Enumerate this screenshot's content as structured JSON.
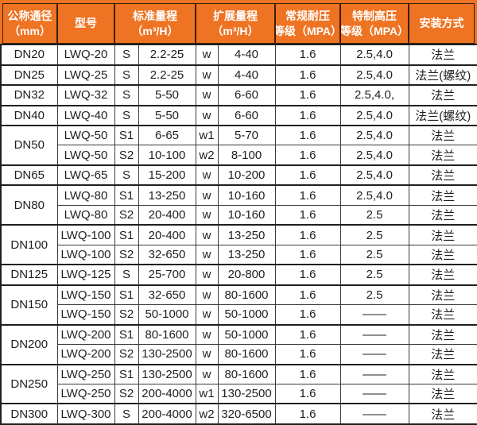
{
  "colors": {
    "header_bg": "#ee7322",
    "header_text": "#ffffff",
    "header_border": "#3a2005",
    "body_border": "#3a3a3a",
    "body_border_thick": "#1f1f1f",
    "body_text": "#1f1f1f",
    "body_bg": "#ffffff"
  },
  "header": {
    "columns": [
      {
        "line1": "公称通径",
        "line2": "（mm）"
      },
      {
        "line1": "型号",
        "line2": ""
      },
      {
        "line1": "标准量程",
        "line2": "（m³/H）"
      },
      {
        "line1": "扩展量程",
        "line2": "（m³/H）"
      },
      {
        "line1": "常规耐压",
        "line2": "等级（MPA）"
      },
      {
        "line1": "特制高压",
        "line2": "等级（MPA）"
      },
      {
        "line1": "安装方式",
        "line2": ""
      }
    ]
  },
  "rows": [
    {
      "dn": "DN20",
      "dn_span": 1,
      "model": "LWQ-20",
      "s_label": "S",
      "s_range": "2.2-25",
      "w_label": "w",
      "w_range": "4-40",
      "pressure": "1.6",
      "high_pressure": "2.5,4.0",
      "install": "法兰",
      "group_start": true
    },
    {
      "dn": "DN25",
      "dn_span": 1,
      "model": "LWQ-25",
      "s_label": "S",
      "s_range": "2.2-25",
      "w_label": "w",
      "w_range": "4-40",
      "pressure": "1.6",
      "high_pressure": "2.5,4.0",
      "install": "法兰(螺纹)",
      "group_start": true
    },
    {
      "dn": "DN32",
      "dn_span": 1,
      "model": "LWQ-32",
      "s_label": "S",
      "s_range": "5-50",
      "w_label": "w",
      "w_range": "6-60",
      "pressure": "1.6",
      "high_pressure": "2.5,4.0,",
      "install": "法兰",
      "group_start": true
    },
    {
      "dn": "DN40",
      "dn_span": 1,
      "model": "LWQ-40",
      "s_label": "S",
      "s_range": "5-50",
      "w_label": "w",
      "w_range": "6-60",
      "pressure": "1.6",
      "high_pressure": "2.5,4.0",
      "install": "法兰(螺纹)",
      "group_start": true
    },
    {
      "dn": "DN50",
      "dn_span": 2,
      "model": "LWQ-50",
      "s_label": "S1",
      "s_range": "6-65",
      "w_label": "w1",
      "w_range": "5-70",
      "pressure": "1.6",
      "high_pressure": "2.5,4.0",
      "install": "法兰",
      "group_start": true
    },
    {
      "model": "LWQ-50",
      "s_label": "S2",
      "s_range": "10-100",
      "w_label": "w2",
      "w_range": "8-100",
      "pressure": "1.6",
      "high_pressure": "2.5,4.0",
      "install": "法兰",
      "group_start": false
    },
    {
      "dn": "DN65",
      "dn_span": 1,
      "model": "LWQ-65",
      "s_label": "S",
      "s_range": "15-200",
      "w_label": "w",
      "w_range": "10-200",
      "pressure": "1.6",
      "high_pressure": "2.5,4.0",
      "install": "法兰",
      "group_start": true
    },
    {
      "dn": "DN80",
      "dn_span": 2,
      "model": "LWQ-80",
      "s_label": "S1",
      "s_range": "13-250",
      "w_label": "w",
      "w_range": "10-160",
      "pressure": "1.6",
      "high_pressure": "2.5,4.0",
      "install": "法兰",
      "group_start": true
    },
    {
      "model": "LWQ-80",
      "s_label": "S2",
      "s_range": "20-400",
      "w_label": "w",
      "w_range": "10-160",
      "pressure": "1.6",
      "high_pressure": "2.5",
      "install": "法兰",
      "group_start": false
    },
    {
      "dn": "DN100",
      "dn_span": 2,
      "model": "LWQ-100",
      "s_label": "S1",
      "s_range": "20-400",
      "w_label": "w",
      "w_range": "13-250",
      "pressure": "1.6",
      "high_pressure": "2.5",
      "install": "法兰",
      "group_start": true
    },
    {
      "model": "LWQ-100",
      "s_label": "S2",
      "s_range": "32-650",
      "w_label": "w",
      "w_range": "13-250",
      "pressure": "1.6",
      "high_pressure": "2.5",
      "install": "法兰",
      "group_start": false
    },
    {
      "dn": "DN125",
      "dn_span": 1,
      "model": "LWQ-125",
      "s_label": "S",
      "s_range": "25-700",
      "w_label": "w",
      "w_range": "20-800",
      "pressure": "1.6",
      "high_pressure": "2.5",
      "install": "法兰",
      "group_start": true
    },
    {
      "dn": "DN150",
      "dn_span": 2,
      "model": "LWQ-150",
      "s_label": "S1",
      "s_range": "32-650",
      "w_label": "w",
      "w_range": "80-1600",
      "pressure": "1.6",
      "high_pressure": "2.5",
      "install": "法兰",
      "group_start": true
    },
    {
      "model": "LWQ-150",
      "s_label": "S2",
      "s_range": "50-1000",
      "w_label": "w",
      "w_range": "50-1000",
      "pressure": "1.6",
      "high_pressure": "——",
      "install": "法兰",
      "group_start": false
    },
    {
      "dn": "DN200",
      "dn_span": 2,
      "model": "LWQ-200",
      "s_label": "S1",
      "s_range": "80-1600",
      "w_label": "w",
      "w_range": "50-1000",
      "pressure": "1.6",
      "high_pressure": "——",
      "install": "法兰",
      "group_start": true
    },
    {
      "model": "LWQ-200",
      "s_label": "S2",
      "s_range": "130-2500",
      "w_label": "w",
      "w_range": "80-1600",
      "pressure": "1.6",
      "high_pressure": "——",
      "install": "法兰",
      "group_start": false
    },
    {
      "dn": "DN250",
      "dn_span": 2,
      "model": "LWQ-250",
      "s_label": "S1",
      "s_range": "130-2500",
      "w_label": "w",
      "w_range": "80-1600",
      "pressure": "1.6",
      "high_pressure": "——",
      "install": "法兰",
      "group_start": true
    },
    {
      "model": "LWQ-250",
      "s_label": "S2",
      "s_range": "200-4000",
      "w_label": "w1",
      "w_range": "130-2500",
      "pressure": "1.6",
      "high_pressure": "——",
      "install": "法兰",
      "group_start": false
    },
    {
      "dn": "DN300",
      "dn_span": 1,
      "model": "LWQ-300",
      "s_label": "S",
      "s_range": "200-4000",
      "w_label": "w2",
      "w_range": "320-6500",
      "pressure": "1.6",
      "high_pressure": "——",
      "install": "法兰",
      "group_start": true
    }
  ]
}
